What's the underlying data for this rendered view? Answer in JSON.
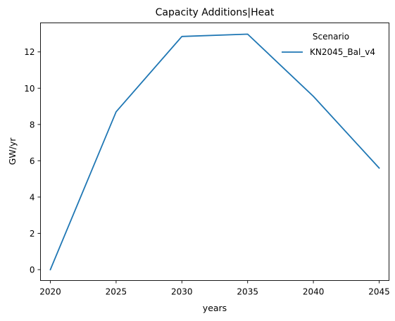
{
  "chart_data": {
    "type": "line",
    "title": "Capacity Additions|Heat",
    "xlabel": "years",
    "ylabel": "GW/yr",
    "x": [
      2020,
      2025,
      2030,
      2035,
      2040,
      2045
    ],
    "xlim": [
      2019.25,
      2045.75
    ],
    "ylim": [
      -0.6,
      13.6
    ],
    "xticks": [
      2020,
      2025,
      2030,
      2035,
      2040,
      2045
    ],
    "yticks": [
      0,
      2,
      4,
      6,
      8,
      10,
      12
    ],
    "grid": false,
    "legend": {
      "title": "Scenario",
      "placement": "top-right"
    },
    "series": [
      {
        "name": "KN2045_Bal_v4",
        "color": "#1f77b4",
        "values": [
          0,
          8.7,
          12.85,
          12.98,
          9.55,
          5.6
        ]
      }
    ]
  }
}
